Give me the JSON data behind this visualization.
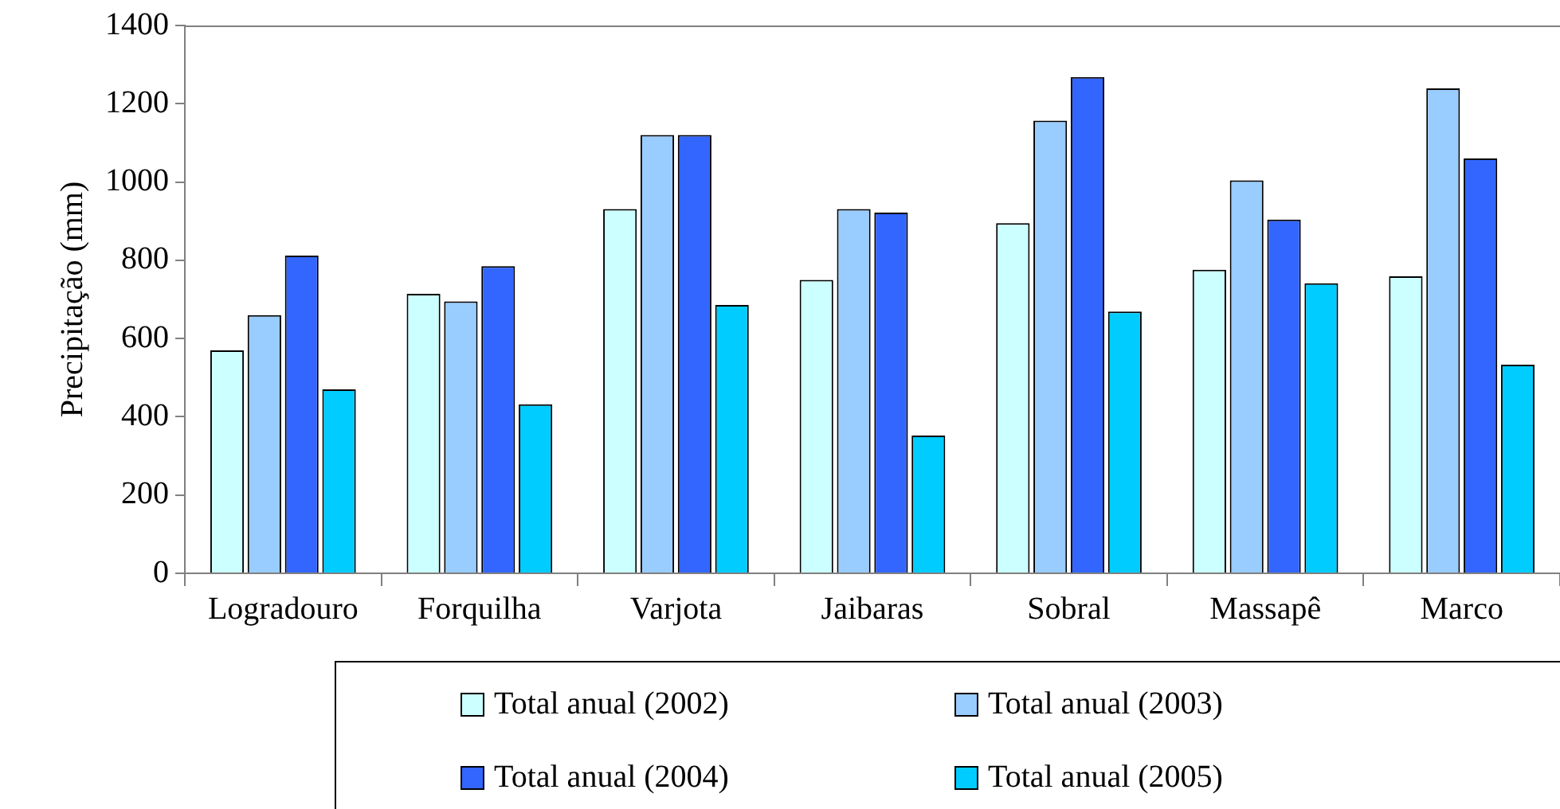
{
  "chart_data": {
    "type": "bar",
    "ylabel": "Precipitação (mm)",
    "categories": [
      "Logradouro",
      "Forquilha",
      "Varjota",
      "Jaibaras",
      "Sobral",
      "Massapê",
      "Marco"
    ],
    "series": [
      {
        "name": "Total anual (2002)",
        "color": "#ccffff",
        "values": [
          570,
          714,
          931,
          750,
          895,
          776,
          759
        ]
      },
      {
        "name": "Total anual (2003)",
        "color": "#99ccff",
        "values": [
          660,
          695,
          1120,
          931,
          1157,
          1004,
          1239
        ]
      },
      {
        "name": "Total anual (2004)",
        "color": "#3366ff",
        "values": [
          812,
          785,
          1120,
          922,
          1268,
          904,
          1060
        ]
      },
      {
        "name": "Total anual (2005)",
        "color": "#00ccff",
        "values": [
          470,
          432,
          686,
          352,
          669,
          741,
          533
        ]
      }
    ],
    "ylim": [
      0,
      1400
    ],
    "yticks": [
      0,
      200,
      400,
      600,
      800,
      1000,
      1200,
      1400
    ],
    "grid": false,
    "legend": "bottom"
  }
}
